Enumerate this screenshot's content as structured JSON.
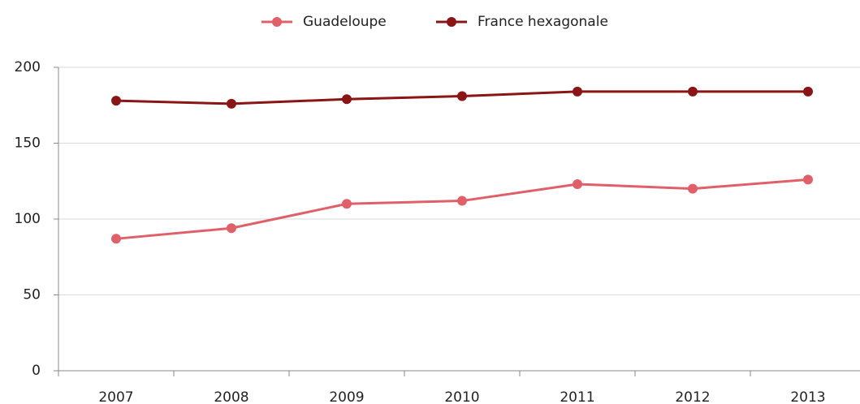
{
  "chart_data": {
    "type": "line",
    "categories": [
      "2007",
      "2008",
      "2009",
      "2010",
      "2011",
      "2012",
      "2013"
    ],
    "series": [
      {
        "name": "Guadeloupe",
        "color": "#e0606a",
        "values": [
          87,
          94,
          110,
          112,
          123,
          120,
          126
        ]
      },
      {
        "name": "France hexagonale",
        "color": "#8b1414",
        "values": [
          178,
          176,
          179,
          181,
          184,
          184,
          184
        ]
      }
    ],
    "ylim": [
      0,
      200
    ],
    "yticks": [
      0,
      50,
      100,
      150,
      200
    ],
    "grid": true,
    "legend": "top"
  }
}
